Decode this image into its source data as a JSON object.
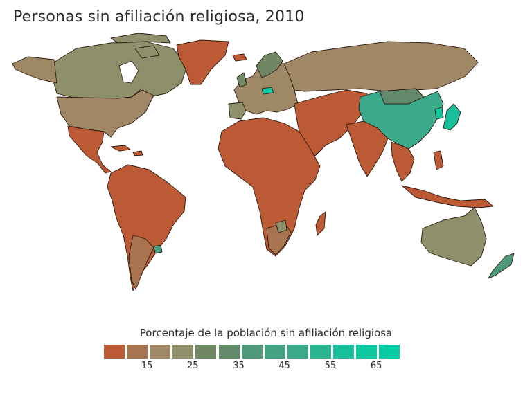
{
  "title": "Personas sin afiliación religiosa, 2010",
  "legend": {
    "title": "Porcentaje de la población sin afiliación religiosa",
    "colors": [
      "#bb5a35",
      "#a97450",
      "#9f8865",
      "#8e906c",
      "#6f8763",
      "#648a6c",
      "#509a7c",
      "#44a283",
      "#3aaa8a",
      "#2cb491",
      "#18bf9a",
      "#0ec79f",
      "#07cba4"
    ],
    "tick_labels": [
      "15",
      "25",
      "35",
      "45",
      "55",
      "65"
    ]
  },
  "chart_data": {
    "type": "choropleth",
    "title": "Personas sin afiliación religiosa, 2010",
    "legend_title": "Porcentaje de la población sin afiliación religiosa",
    "scale": {
      "min": 0,
      "step": 5,
      "bins": 13,
      "tick_values": [
        15,
        25,
        35,
        45,
        55,
        65
      ]
    },
    "regions": [
      {
        "region": "China",
        "percent": 52
      },
      {
        "region": "Japan",
        "percent": 57
      },
      {
        "region": "North Korea",
        "percent": 71
      },
      {
        "region": "Hong Kong",
        "percent": 56
      },
      {
        "region": "Czech Republic",
        "percent": 76
      },
      {
        "region": "Estonia",
        "percent": 60
      },
      {
        "region": "Mongolia",
        "percent": 36
      },
      {
        "region": "New Zealand",
        "percent": 37
      },
      {
        "region": "Uruguay",
        "percent": 41
      },
      {
        "region": "Vietnam",
        "percent": 30
      },
      {
        "region": "Netherlands",
        "percent": 42
      },
      {
        "region": "Canada",
        "percent": 24
      },
      {
        "region": "Australia",
        "percent": 24
      },
      {
        "region": "United States",
        "percent": 16
      },
      {
        "region": "Russia",
        "percent": 16
      },
      {
        "region": "France",
        "percent": 28
      },
      {
        "region": "Brazil",
        "percent": 8
      },
      {
        "region": "India",
        "percent": 0
      },
      {
        "region": "Greenland",
        "percent": 2
      },
      {
        "region": "Saudi Arabia",
        "percent": 1
      }
    ]
  }
}
